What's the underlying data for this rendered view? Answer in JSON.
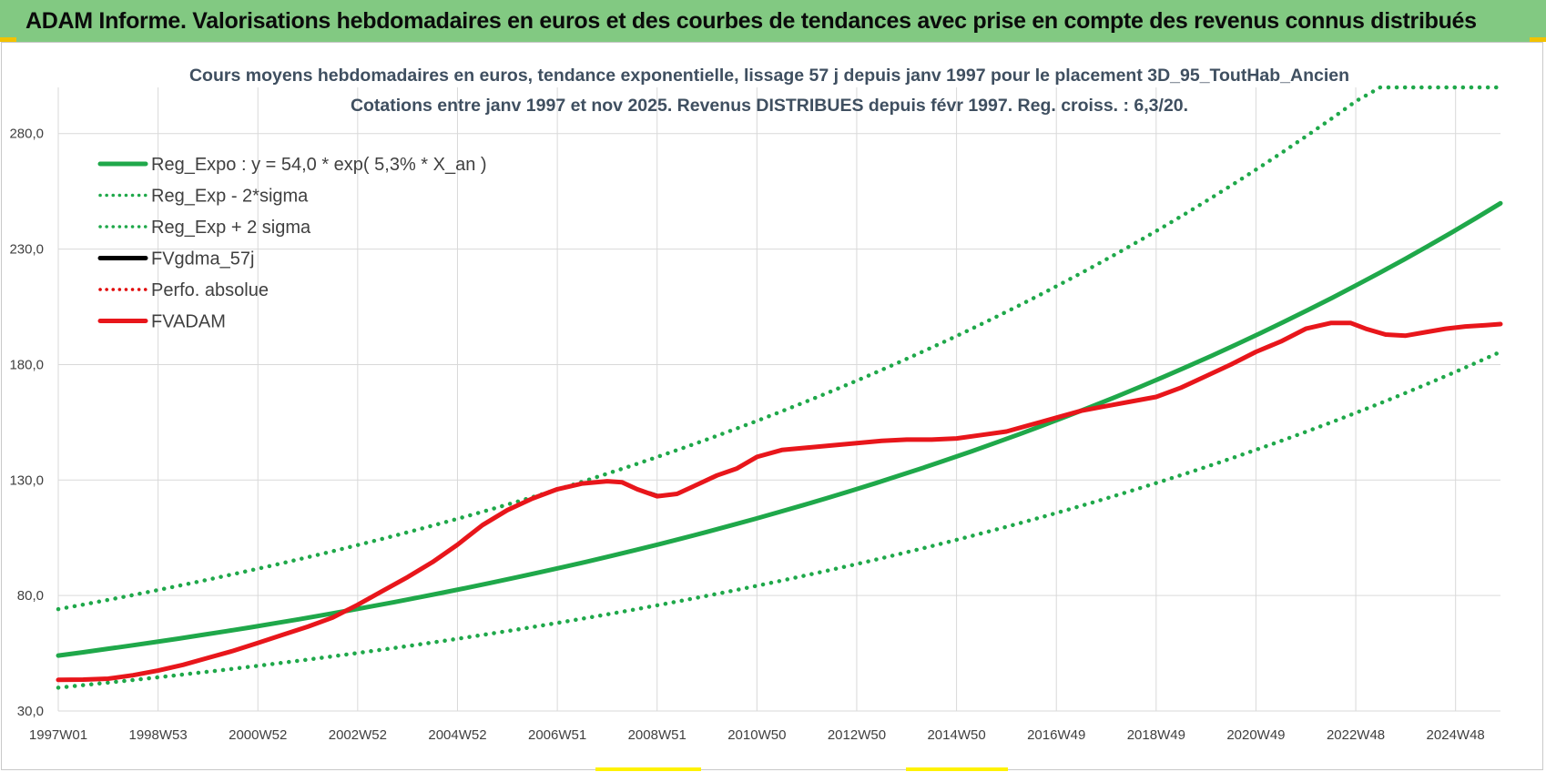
{
  "header": {
    "title": "ADAM Informe. Valorisations hebdomadaires en euros et des courbes de tendances avec prise en compte des revenus connus distribués"
  },
  "chart_data": {
    "type": "line",
    "title": [
      "Cours moyens hebdomadaires en euros, tendance exponentielle, lissage 57 j depuis janv 1997  pour le placement 3D_95_ToutHab_Ancien",
      "Cotations entre janv 1997 et nov 2025. Revenus DISTRIBUES depuis févr 1997. Reg. croiss. : 6,3/20."
    ],
    "xlabel": "",
    "ylabel": "",
    "x_range_years": [
      1997.0,
      2025.9
    ],
    "x_ticks": [
      {
        "label": "1997W01",
        "year": 1997.0
      },
      {
        "label": "1998W53",
        "year": 1999.0
      },
      {
        "label": "2000W52",
        "year": 2001.0
      },
      {
        "label": "2002W52",
        "year": 2003.0
      },
      {
        "label": "2004W52",
        "year": 2005.0
      },
      {
        "label": "2006W51",
        "year": 2007.0
      },
      {
        "label": "2008W51",
        "year": 2009.0
      },
      {
        "label": "2010W50",
        "year": 2011.0
      },
      {
        "label": "2012W50",
        "year": 2013.0
      },
      {
        "label": "2014W50",
        "year": 2015.0
      },
      {
        "label": "2016W49",
        "year": 2017.0
      },
      {
        "label": "2018W49",
        "year": 2019.0
      },
      {
        "label": "2020W49",
        "year": 2021.0
      },
      {
        "label": "2022W48",
        "year": 2023.0
      },
      {
        "label": "2024W48",
        "year": 2025.0
      }
    ],
    "ylim": [
      30,
      300
    ],
    "y_ticks": [
      {
        "label": "30,0",
        "value": 30
      },
      {
        "label": "80,0",
        "value": 80
      },
      {
        "label": "130,0",
        "value": 130
      },
      {
        "label": "180,0",
        "value": 180
      },
      {
        "label": "230,0",
        "value": 230
      },
      {
        "label": "280,0",
        "value": 280
      }
    ],
    "grid": true,
    "legend_position": "top-left",
    "series": [
      {
        "name": "Reg_Expo : y = 54,0 * exp( 5,3% *  X_an )",
        "color": "#1fa84a",
        "style": "solid",
        "x": [
          1997.0,
          2025.9
        ],
        "formula": {
          "a": 54.0,
          "rate": 0.053
        },
        "points": 60
      },
      {
        "name": "Reg_Exp - 2*sigma",
        "color": "#1fa84a",
        "style": "dotted",
        "x": [
          1997.0,
          2025.9
        ],
        "formula": {
          "a": 40.1,
          "rate": 0.053
        },
        "points": 60
      },
      {
        "name": "Reg_Exp + 2 sigma",
        "color": "#1fa84a",
        "style": "dotted",
        "x": [
          1997.0,
          2025.9
        ],
        "formula": {
          "a": 74.1,
          "rate": 0.053
        },
        "points": 60,
        "cap": 300
      },
      {
        "name": "FVgdma_57j",
        "color": "#000000",
        "style": "solid",
        "x": [
          2008.85,
          2009.0,
          2009.2,
          2009.4
        ],
        "y": [
          124.6,
          123.5,
          123.2,
          124.0
        ]
      },
      {
        "name": "Perfo. absolue",
        "color": "#e00000",
        "style": "dotted",
        "x": [],
        "y": []
      },
      {
        "name": "FVADAM",
        "color": "#e8161b",
        "style": "solid",
        "x": [
          1997.0,
          1997.5,
          1998.0,
          1998.5,
          1999.0,
          1999.5,
          2000.0,
          2000.5,
          2001.0,
          2001.5,
          2002.0,
          2002.5,
          2003.0,
          2003.5,
          2004.0,
          2004.5,
          2005.0,
          2005.5,
          2006.0,
          2006.5,
          2007.0,
          2007.5,
          2008.0,
          2008.3,
          2008.6,
          2009.0,
          2009.4,
          2009.8,
          2010.2,
          2010.6,
          2011.0,
          2011.5,
          2012.0,
          2012.5,
          2013.0,
          2013.5,
          2014.0,
          2014.5,
          2015.0,
          2015.5,
          2016.0,
          2016.5,
          2017.0,
          2017.5,
          2018.0,
          2018.5,
          2019.0,
          2019.5,
          2020.0,
          2020.5,
          2021.0,
          2021.5,
          2022.0,
          2022.5,
          2022.9,
          2023.2,
          2023.6,
          2024.0,
          2024.4,
          2024.8,
          2025.2,
          2025.6,
          2025.9
        ],
        "y": [
          43.5,
          43.6,
          44.0,
          45.5,
          47.5,
          50.0,
          53.0,
          56.0,
          59.5,
          63.0,
          66.5,
          70.5,
          76.0,
          82.0,
          88.0,
          94.5,
          102.0,
          110.5,
          117.0,
          122.0,
          126.0,
          128.5,
          129.5,
          129.0,
          126.0,
          123.0,
          124.0,
          128.0,
          132.0,
          135.0,
          140.0,
          143.0,
          144.0,
          145.0,
          146.0,
          147.0,
          147.5,
          147.5,
          148.0,
          149.5,
          151.0,
          154.0,
          157.0,
          160.0,
          162.0,
          164.0,
          166.0,
          170.0,
          175.0,
          180.0,
          185.5,
          190.0,
          195.5,
          198.0,
          198.0,
          195.5,
          193.0,
          192.5,
          194.0,
          195.5,
          196.5,
          197.0,
          197.5
        ]
      }
    ]
  }
}
